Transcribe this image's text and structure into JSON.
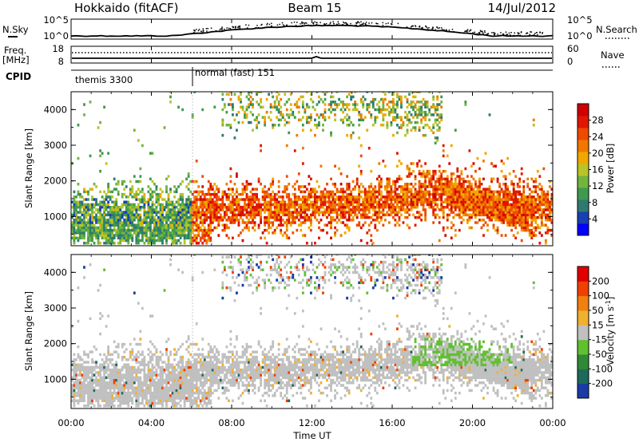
{
  "header": {
    "station": "Hokkaido (fitACF)",
    "beam": "Beam 15",
    "date": "14/Jul/2012"
  },
  "sky_panel": {
    "left_label": "N.Sky",
    "right_label": "N.Search",
    "left_ticks": [
      "10^5",
      "10^0"
    ],
    "right_ticks": [
      "10^5",
      "10^0"
    ]
  },
  "freq_panel": {
    "left_label_1": "Freq.",
    "left_label_2": "[MHz]",
    "right_label": "Nave",
    "left_ticks": [
      "18",
      "8"
    ],
    "right_ticks": [
      "60",
      "0"
    ]
  },
  "cpid_panel": {
    "label": "CPID",
    "segments": [
      {
        "name": "themis 3300",
        "start_hour": 0
      },
      {
        "name": "normal (fast) 151",
        "start_hour": 6.0
      }
    ]
  },
  "x_axis": {
    "label": "Time UT",
    "ticks": [
      "00:00",
      "04:00",
      "08:00",
      "12:00",
      "16:00",
      "20:00",
      "00:00"
    ]
  },
  "chart_data": [
    {
      "type": "heatmap",
      "name": "power",
      "ylabel": "Slant Range [km]",
      "y_ticks": [
        "1000",
        "2000",
        "3000",
        "4000"
      ],
      "xlim_hours": [
        0,
        24
      ],
      "ylim_km": [
        180,
        4500
      ],
      "colorbar": {
        "label": "Power [dB]",
        "ticks": [
          "28",
          "24",
          "20",
          "16",
          "12",
          "8",
          "4"
        ],
        "range": [
          0,
          32
        ],
        "colors": [
          "#0000ff",
          "#1840b0",
          "#2f7a70",
          "#3f9a4e",
          "#72b43e",
          "#b8c428",
          "#f0a800",
          "#f07800",
          "#ee4a00",
          "#e01800",
          "#d00000"
        ]
      }
    },
    {
      "type": "heatmap",
      "name": "velocity",
      "ylabel": "Slant Range [km]",
      "y_ticks": [
        "1000",
        "2000",
        "3000",
        "4000"
      ],
      "xlim_hours": [
        0,
        24
      ],
      "ylim_km": [
        180,
        4500
      ],
      "colorbar": {
        "label": "Velocity [m s^-1]",
        "ticks": [
          "200",
          "100",
          "50",
          "15",
          "-15",
          "-50",
          "-100",
          "-200"
        ],
        "range": [
          -250,
          250
        ],
        "colors": [
          "#1a3aa8",
          "#1e6a5a",
          "#2f8a38",
          "#60c030",
          "#c0c0c0",
          "#f0b030",
          "#f08010",
          "#f04000",
          "#e00000"
        ]
      }
    }
  ]
}
